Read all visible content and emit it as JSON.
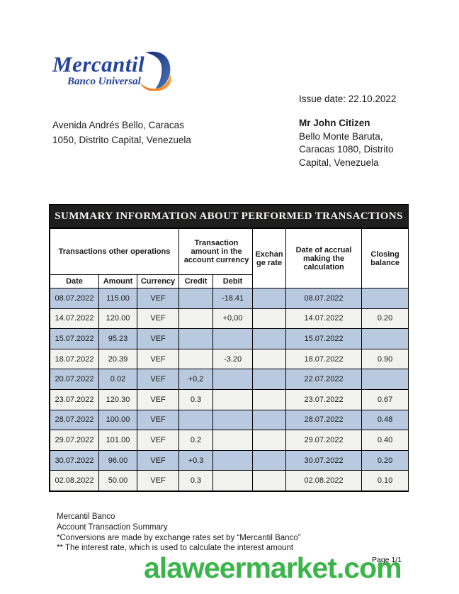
{
  "logo": {
    "brand": "Mercantil",
    "subbrand": "Banco Universal",
    "brand_color": "#24449c",
    "swoosh_blue": "#2a4fa3",
    "swoosh_dark_blue": "#16256e",
    "swoosh_orange": "#f7941d"
  },
  "issue_date": "Issue date: 22.10.2022",
  "sender_address": {
    "line1": "Avenida Andrés Bello, Caracas",
    "line2": "1050, Distrito Capital, Venezuela"
  },
  "recipient": {
    "name": "Mr John Citizen",
    "line1": "Bello Monte Baruta,",
    "line2": "Caracas 1080, Distrito",
    "line3": "Capital, Venezuela"
  },
  "table": {
    "banner": "SUMMARY INFORMATION ABOUT PERFORMED TRANSACTIONS",
    "group_headers": {
      "transactions": "Transactions other operations",
      "tx_amount": "Transaction amount in the account currency",
      "exchange_rate": "Exchan ge rate",
      "accrual_date": "Date of accrual making the calculation",
      "closing_balance": "Closing balance"
    },
    "sub_headers": {
      "date": "Date",
      "amount": "Amount",
      "currency": "Currency",
      "credit": "Credit",
      "debit": "Debit"
    },
    "colors": {
      "banner_bg": "#1f1e1e",
      "banner_text": "#f5f3f0",
      "row_blue": "#b9c9df",
      "row_plain": "#f2f2f1",
      "subheader_bg": "#c8c8c8"
    },
    "rows": [
      {
        "date": "08.07.2022",
        "amount": "115.00",
        "currency": "VEF",
        "credit": "",
        "debit": "-18.41",
        "exchange_rate": "",
        "accrual_date": "08.07.2022",
        "closing_balance": ""
      },
      {
        "date": "14.07.2022",
        "amount": "120.00",
        "currency": "VEF",
        "credit": "",
        "debit": "+0,00",
        "exchange_rate": "",
        "accrual_date": "14.07.2022",
        "closing_balance": "0.20"
      },
      {
        "date": "15.07.2022",
        "amount": "95.23",
        "currency": "VEF",
        "credit": "",
        "debit": "",
        "exchange_rate": "",
        "accrual_date": "15.07.2022",
        "closing_balance": ""
      },
      {
        "date": "18.07.2022",
        "amount": "20.39",
        "currency": "VEF",
        "credit": "",
        "debit": "-3.20",
        "exchange_rate": "",
        "accrual_date": "18.07.2022",
        "closing_balance": "0.90"
      },
      {
        "date": "20.07.2022",
        "amount": "0.02",
        "currency": "VEF",
        "credit": "+0,2",
        "debit": "",
        "exchange_rate": "",
        "accrual_date": "22.07.2022",
        "closing_balance": ""
      },
      {
        "date": "23.07.2022",
        "amount": "120.30",
        "currency": "VEF",
        "credit": "0.3",
        "debit": "",
        "exchange_rate": "",
        "accrual_date": "23.07.2022",
        "closing_balance": "0.67"
      },
      {
        "date": "28.07.2022",
        "amount": "100.00",
        "currency": "VEF",
        "credit": "",
        "debit": "",
        "exchange_rate": "",
        "accrual_date": "28.07.2022",
        "closing_balance": "0.48"
      },
      {
        "date": "29.07.2022",
        "amount": "101.00",
        "currency": "VEF",
        "credit": "0.2",
        "debit": "",
        "exchange_rate": "",
        "accrual_date": "29.07.2022",
        "closing_balance": "0.40"
      },
      {
        "date": "30.07.2022",
        "amount": "96.00",
        "currency": "VEF",
        "credit": "+0.3",
        "debit": "",
        "exchange_rate": "",
        "accrual_date": "30.07.2022",
        "closing_balance": "0.20"
      },
      {
        "date": "02.08.2022",
        "amount": "50.00",
        "currency": "VEF",
        "credit": "0.3",
        "debit": "",
        "exchange_rate": "",
        "accrual_date": "02.08.2022",
        "closing_balance": "0.10"
      }
    ]
  },
  "footer": {
    "line1": "Mercantil Banco",
    "line2": "Account Transaction Summary",
    "line3": "*Conversions are made by exchange rates set by “Mercantil Banco”",
    "line4": "** The interest rate, which is used to calculate the interest amount"
  },
  "page_number": "Page 1/1",
  "watermark": {
    "text": "alaweermarket.com",
    "color": "#3bb54a"
  }
}
